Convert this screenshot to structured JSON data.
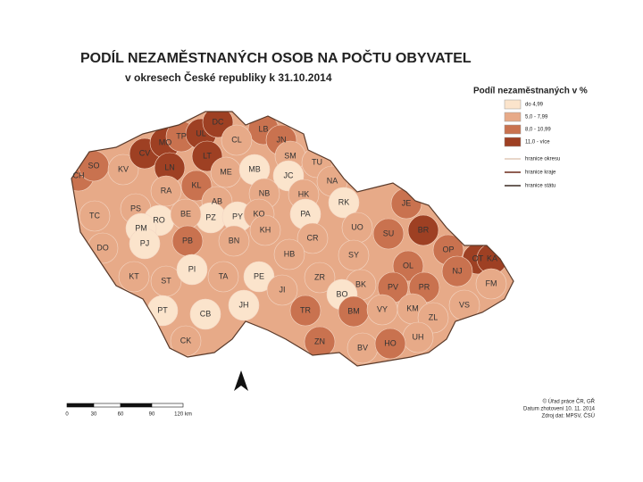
{
  "map": {
    "title": "PODÍL NEZAMĚSTNANÝCH OSOB NA POČTU OBYVATEL",
    "subtitle": "v okresech České republiky k 31.10.2014",
    "legend": {
      "title": "Podíl nezaměstnaných v %",
      "classes": [
        {
          "label": "do 4,99",
          "color": "#fbe4cc"
        },
        {
          "label": "5,0 - 7,99",
          "color": "#e7aa88"
        },
        {
          "label": "8,0 - 10,99",
          "color": "#c9724f"
        },
        {
          "label": "11,0 - více",
          "color": "#9e4023"
        }
      ],
      "lines": [
        {
          "label": "hranice okresu",
          "color": "#e0c8b8"
        },
        {
          "label": "hranice kraje",
          "color": "#6b2a1a"
        },
        {
          "label": "hranice státu",
          "color": "#3a2a22"
        }
      ]
    },
    "districts": [
      {
        "label": "CH",
        "color": "#c9724f"
      },
      {
        "label": "SO",
        "color": "#c9724f"
      },
      {
        "label": "KV",
        "color": "#e7aa88"
      },
      {
        "label": "CV",
        "color": "#9e4023"
      },
      {
        "label": "MO",
        "color": "#9e4023"
      },
      {
        "label": "TP",
        "color": "#c9724f"
      },
      {
        "label": "UL",
        "color": "#9e4023"
      },
      {
        "label": "DC",
        "color": "#9e4023"
      },
      {
        "label": "LB",
        "color": "#c9724f"
      },
      {
        "label": "JN",
        "color": "#c9724f"
      },
      {
        "label": "CL",
        "color": "#e7aa88"
      },
      {
        "label": "LN",
        "color": "#9e4023"
      },
      {
        "label": "LT",
        "color": "#9e4023"
      },
      {
        "label": "ME",
        "color": "#e7aa88"
      },
      {
        "label": "MB",
        "color": "#fbe4cc"
      },
      {
        "label": "SM",
        "color": "#e7aa88"
      },
      {
        "label": "TU",
        "color": "#e7aa88"
      },
      {
        "label": "JC",
        "color": "#fbe4cc"
      },
      {
        "label": "NA",
        "color": "#e7aa88"
      },
      {
        "label": "KL",
        "color": "#c9724f"
      },
      {
        "label": "RA",
        "color": "#e7aa88"
      },
      {
        "label": "AB",
        "color": "#e7aa88"
      },
      {
        "label": "PZ",
        "color": "#fbe4cc"
      },
      {
        "label": "PY",
        "color": "#fbe4cc"
      },
      {
        "label": "NB",
        "color": "#e7aa88"
      },
      {
        "label": "HK",
        "color": "#e7aa88"
      },
      {
        "label": "RK",
        "color": "#fbe4cc"
      },
      {
        "label": "TC",
        "color": "#e7aa88"
      },
      {
        "label": "PS",
        "color": "#e7aa88"
      },
      {
        "label": "RO",
        "color": "#fbe4cc"
      },
      {
        "label": "BE",
        "color": "#e7aa88"
      },
      {
        "label": "KO",
        "color": "#e7aa88"
      },
      {
        "label": "PA",
        "color": "#fbe4cc"
      },
      {
        "label": "PM",
        "color": "#fbe4cc"
      },
      {
        "label": "PJ",
        "color": "#fbe4cc"
      },
      {
        "label": "PB",
        "color": "#c9724f"
      },
      {
        "label": "BN",
        "color": "#e7aa88"
      },
      {
        "label": "KH",
        "color": "#e7aa88"
      },
      {
        "label": "CR",
        "color": "#e7aa88"
      },
      {
        "label": "UO",
        "color": "#e7aa88"
      },
      {
        "label": "SU",
        "color": "#c9724f"
      },
      {
        "label": "JE",
        "color": "#c9724f"
      },
      {
        "label": "BR",
        "color": "#9e4023"
      },
      {
        "label": "OP",
        "color": "#c9724f"
      },
      {
        "label": "DO",
        "color": "#e7aa88"
      },
      {
        "label": "KT",
        "color": "#e7aa88"
      },
      {
        "label": "ST",
        "color": "#e7aa88"
      },
      {
        "label": "PI",
        "color": "#fbe4cc"
      },
      {
        "label": "TA",
        "color": "#e7aa88"
      },
      {
        "label": "PE",
        "color": "#fbe4cc"
      },
      {
        "label": "HB",
        "color": "#e7aa88"
      },
      {
        "label": "SY",
        "color": "#e7aa88"
      },
      {
        "label": "OT",
        "color": "#9e4023"
      },
      {
        "label": "KA",
        "color": "#9e4023"
      },
      {
        "label": "NJ",
        "color": "#c9724f"
      },
      {
        "label": "FM",
        "color": "#e7aa88"
      },
      {
        "label": "OL",
        "color": "#c9724f"
      },
      {
        "label": "PR",
        "color": "#c9724f"
      },
      {
        "label": "JI",
        "color": "#e7aa88"
      },
      {
        "label": "ZR",
        "color": "#e7aa88"
      },
      {
        "label": "BK",
        "color": "#e7aa88"
      },
      {
        "label": "BO",
        "color": "#fbe4cc"
      },
      {
        "label": "PV",
        "color": "#c9724f"
      },
      {
        "label": "VS",
        "color": "#e7aa88"
      },
      {
        "label": "KM",
        "color": "#e7aa88"
      },
      {
        "label": "ZL",
        "color": "#e7aa88"
      },
      {
        "label": "PT",
        "color": "#fbe4cc"
      },
      {
        "label": "CB",
        "color": "#fbe4cc"
      },
      {
        "label": "JH",
        "color": "#fbe4cc"
      },
      {
        "label": "TR",
        "color": "#c9724f"
      },
      {
        "label": "BM",
        "color": "#c9724f"
      },
      {
        "label": "VY",
        "color": "#e7aa88"
      },
      {
        "label": "UH",
        "color": "#e7aa88"
      },
      {
        "label": "CK",
        "color": "#e7aa88"
      },
      {
        "label": "ZN",
        "color": "#c9724f"
      },
      {
        "label": "BV",
        "color": "#e7aa88"
      },
      {
        "label": "HO",
        "color": "#c9724f"
      }
    ],
    "scale": [
      "0",
      "30",
      "60",
      "90",
      "120 km"
    ],
    "credits": [
      "© Úřad práce ČR, GŘ",
      "Datum zhotovení 10. 11. 2014",
      "Zdroj dat: MPSV, ČSÚ"
    ]
  }
}
